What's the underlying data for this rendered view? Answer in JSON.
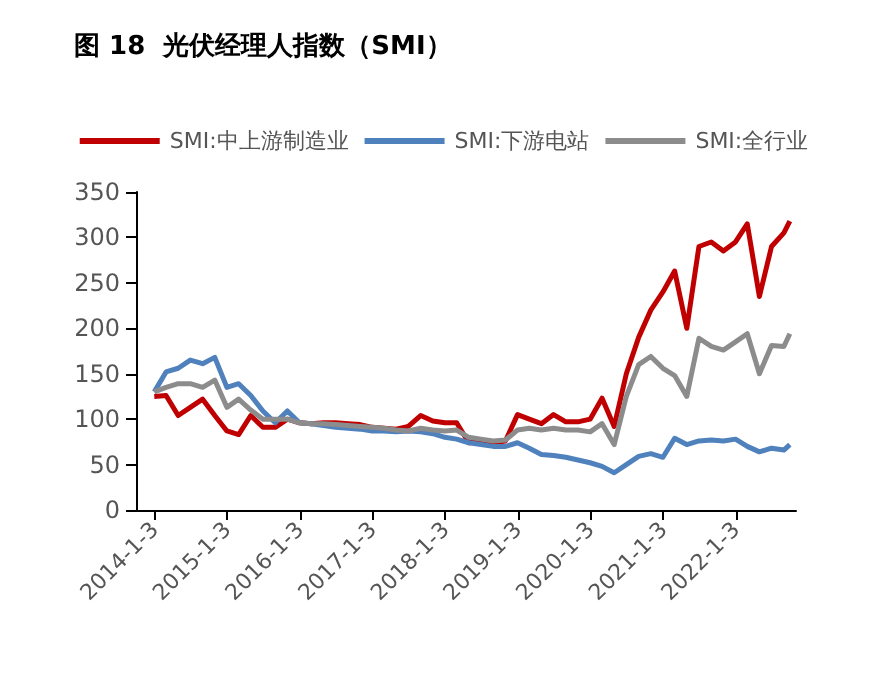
{
  "chart_data": {
    "type": "line",
    "title": "图 18  光伏经理人指数（SMI）",
    "x": [
      "2014-01",
      "2014-03",
      "2014-05",
      "2014-07",
      "2014-09",
      "2014-11",
      "2015-01",
      "2015-03",
      "2015-05",
      "2015-07",
      "2015-09",
      "2015-11",
      "2016-01",
      "2016-03",
      "2016-05",
      "2016-07",
      "2016-09",
      "2016-11",
      "2017-01",
      "2017-03",
      "2017-05",
      "2017-07",
      "2017-09",
      "2017-11",
      "2018-01",
      "2018-03",
      "2018-05",
      "2018-07",
      "2018-09",
      "2018-11",
      "2019-01",
      "2019-03",
      "2019-05",
      "2019-07",
      "2019-09",
      "2019-11",
      "2020-01",
      "2020-03",
      "2020-05",
      "2020-07",
      "2020-09",
      "2020-11",
      "2021-01",
      "2021-03",
      "2021-05",
      "2021-07",
      "2021-09",
      "2021-11",
      "2022-01",
      "2022-03",
      "2022-05",
      "2022-07",
      "2022-09",
      "2022-10"
    ],
    "series": [
      {
        "name": "SMI:中上游制造业",
        "color": "#c00000",
        "values": [
          125,
          126,
          104,
          113,
          122,
          104,
          87,
          83,
          104,
          91,
          91,
          100,
          96,
          95,
          96,
          96,
          95,
          94,
          91,
          90,
          89,
          92,
          104,
          98,
          96,
          96,
          74,
          75,
          74,
          76,
          105,
          100,
          95,
          105,
          97,
          97,
          100,
          123,
          92,
          150,
          190,
          220,
          240,
          263,
          200,
          290,
          295,
          285,
          295,
          315,
          235,
          290,
          305,
          318
        ]
      },
      {
        "name": "SMI:下游电站",
        "color": "#4f81bd",
        "values": [
          130,
          152,
          156,
          165,
          161,
          168,
          135,
          139,
          126,
          109,
          96,
          109,
          96,
          95,
          93,
          91,
          90,
          89,
          87,
          87,
          86,
          87,
          86,
          84,
          80,
          78,
          74,
          72,
          70,
          70,
          74,
          68,
          61,
          60,
          58,
          55,
          52,
          48,
          41,
          50,
          59,
          62,
          58,
          79,
          72,
          76,
          77,
          76,
          78,
          70,
          64,
          68,
          66,
          72
        ]
      },
      {
        "name": "SMI:全行业",
        "color": "#8c8c8c",
        "values": [
          130,
          135,
          139,
          139,
          135,
          143,
          113,
          122,
          110,
          100,
          100,
          100,
          96,
          95,
          95,
          94,
          93,
          92,
          91,
          90,
          88,
          87,
          90,
          88,
          87,
          88,
          80,
          78,
          76,
          77,
          88,
          90,
          88,
          90,
          88,
          88,
          86,
          95,
          72,
          125,
          160,
          169,
          156,
          148,
          125,
          189,
          180,
          176,
          185,
          194,
          150,
          181,
          180,
          194
        ]
      }
    ],
    "xlim": [
      "2013-10-01",
      "2022-11-01"
    ],
    "xticks": [
      {
        "value": "2014-01-03",
        "label": "2014-1-3"
      },
      {
        "value": "2015-01-03",
        "label": "2015-1-3"
      },
      {
        "value": "2016-01-03",
        "label": "2016-1-3"
      },
      {
        "value": "2017-01-03",
        "label": "2017-1-3"
      },
      {
        "value": "2018-01-03",
        "label": "2018-1-3"
      },
      {
        "value": "2019-01-03",
        "label": "2019-1-3"
      },
      {
        "value": "2020-01-03",
        "label": "2020-1-3"
      },
      {
        "value": "2021-01-03",
        "label": "2021-1-3"
      },
      {
        "value": "2022-01-03",
        "label": "2022-1-3"
      }
    ],
    "ylim": [
      0,
      350
    ],
    "yticks": [
      0,
      50,
      100,
      150,
      200,
      250,
      300,
      350
    ],
    "grid": false,
    "legend": "top",
    "marker": "none",
    "line_style": "solid"
  }
}
